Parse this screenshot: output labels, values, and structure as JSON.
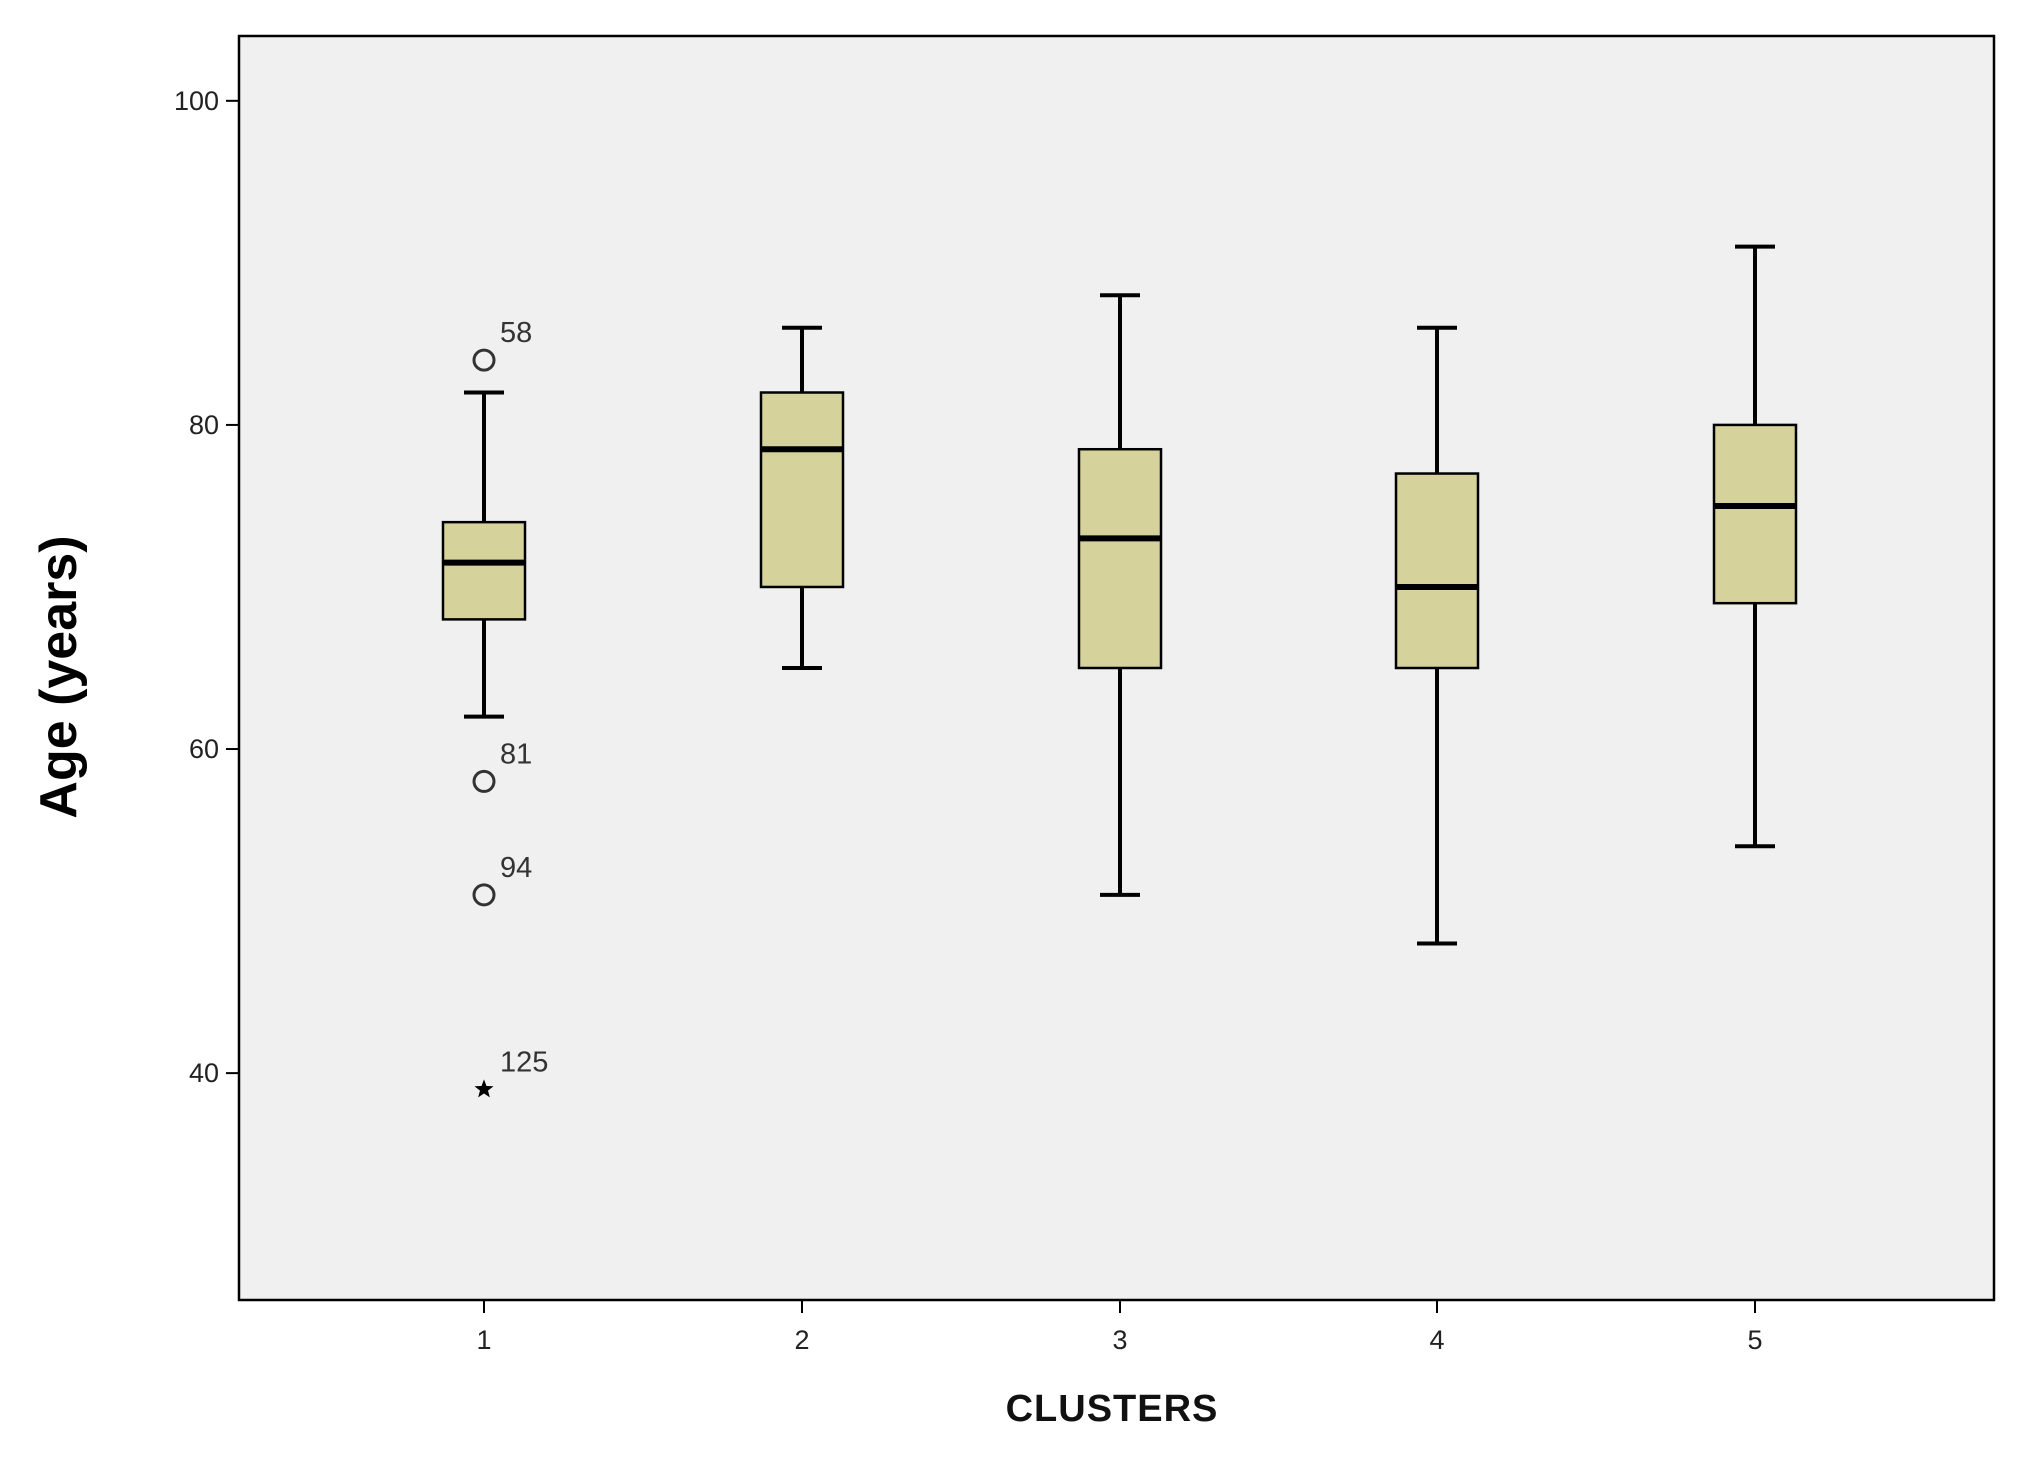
{
  "chart_data": {
    "type": "boxplot",
    "xlabel": "CLUSTERS",
    "ylabel": "Age (years)",
    "categories": [
      "1",
      "2",
      "3",
      "4",
      "5"
    ],
    "ylim": [
      26,
      104
    ],
    "yticks": [
      40,
      60,
      80,
      100
    ],
    "ytick_labels": [
      "40",
      "60",
      "80",
      "100"
    ],
    "grid": false,
    "colors": {
      "plot_background": "#f0f0f0",
      "box_fill": "#d6d29c",
      "stroke": "#000000"
    },
    "boxes": [
      {
        "category": "1",
        "whisker_low": 62,
        "q1": 68,
        "median": 71.5,
        "q3": 74,
        "whisker_high": 82
      },
      {
        "category": "2",
        "whisker_low": 65,
        "q1": 70,
        "median": 78.5,
        "q3": 82,
        "whisker_high": 86
      },
      {
        "category": "3",
        "whisker_low": 51,
        "q1": 65,
        "median": 73,
        "q3": 78.5,
        "whisker_high": 88
      },
      {
        "category": "4",
        "whisker_low": 48,
        "q1": 65,
        "median": 70,
        "q3": 77,
        "whisker_high": 86
      },
      {
        "category": "5",
        "whisker_low": 54,
        "q1": 69,
        "median": 75,
        "q3": 80,
        "whisker_high": 91
      }
    ],
    "outliers": [
      {
        "category": "1",
        "value": 84,
        "label": "58",
        "marker": "circle"
      },
      {
        "category": "1",
        "value": 58,
        "label": "81",
        "marker": "circle"
      },
      {
        "category": "1",
        "value": 51,
        "label": "94",
        "marker": "circle"
      },
      {
        "category": "1",
        "value": 39,
        "label": "125",
        "marker": "star"
      }
    ]
  }
}
